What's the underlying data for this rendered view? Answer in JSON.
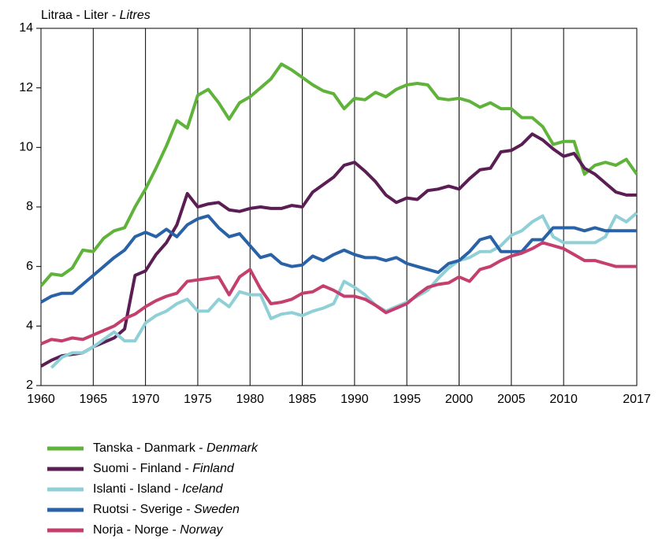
{
  "chart_data": {
    "type": "line",
    "title": "Litraa - Liter - Litres",
    "x": [
      1960,
      1961,
      1962,
      1963,
      1964,
      1965,
      1966,
      1967,
      1968,
      1969,
      1970,
      1971,
      1972,
      1973,
      1974,
      1975,
      1976,
      1977,
      1978,
      1979,
      1980,
      1981,
      1982,
      1983,
      1984,
      1985,
      1986,
      1987,
      1988,
      1989,
      1990,
      1991,
      1992,
      1993,
      1994,
      1995,
      1996,
      1997,
      1998,
      1999,
      2000,
      2001,
      2002,
      2003,
      2004,
      2005,
      2006,
      2007,
      2008,
      2009,
      2010,
      2011,
      2012,
      2013,
      2014,
      2015,
      2016,
      2017
    ],
    "xlim": [
      1960,
      2017
    ],
    "xticks": [
      1960,
      1965,
      1970,
      1975,
      1980,
      1985,
      1990,
      1995,
      2000,
      2005,
      2010,
      2017
    ],
    "ylim": [
      2,
      14
    ],
    "yticks": [
      2,
      4,
      6,
      8,
      10,
      12,
      14
    ],
    "grid": "x",
    "series": [
      {
        "name": "Tanska - Danmark - Denmark",
        "color": "#5fb33a",
        "values": [
          5.35,
          5.75,
          5.7,
          5.95,
          6.55,
          6.5,
          6.95,
          7.2,
          7.3,
          8.0,
          8.6,
          9.3,
          10.05,
          10.9,
          10.65,
          11.75,
          11.95,
          11.5,
          10.95,
          11.5,
          11.7,
          12.0,
          12.3,
          12.8,
          12.6,
          12.35,
          12.1,
          11.9,
          11.8,
          11.3,
          11.65,
          11.6,
          11.85,
          11.7,
          11.95,
          12.1,
          12.15,
          12.1,
          11.65,
          11.6,
          11.65,
          11.55,
          11.35,
          11.5,
          11.3,
          11.3,
          11.0,
          11.0,
          10.7,
          10.1,
          10.2,
          10.2,
          9.1,
          9.4,
          9.5,
          9.4,
          9.6,
          9.1
        ]
      },
      {
        "name": "Suomi - Finland - Finland",
        "color": "#5a1e54",
        "values": [
          2.65,
          2.85,
          3.0,
          3.05,
          3.1,
          3.3,
          3.45,
          3.6,
          3.9,
          5.7,
          5.85,
          6.4,
          6.8,
          7.4,
          8.45,
          8.0,
          8.1,
          8.15,
          7.9,
          7.85,
          7.95,
          8.0,
          7.95,
          7.95,
          8.05,
          8.0,
          8.5,
          8.75,
          9.0,
          9.4,
          9.5,
          9.2,
          8.85,
          8.4,
          8.15,
          8.3,
          8.25,
          8.55,
          8.6,
          8.7,
          8.6,
          8.95,
          9.25,
          9.3,
          9.85,
          9.9,
          10.1,
          10.45,
          10.25,
          9.95,
          9.7,
          9.8,
          9.3,
          9.1,
          8.8,
          8.5,
          8.4,
          8.4
        ]
      },
      {
        "name": "Islanti - Island - Iceland",
        "color": "#8fd0d6",
        "values": [
          null,
          2.6,
          2.95,
          3.1,
          3.1,
          3.3,
          3.55,
          3.8,
          3.5,
          3.5,
          4.1,
          4.35,
          4.5,
          4.75,
          4.9,
          4.5,
          4.5,
          4.9,
          4.65,
          5.15,
          5.05,
          5.05,
          4.25,
          4.4,
          4.45,
          4.35,
          4.5,
          4.6,
          4.75,
          5.5,
          5.3,
          5.05,
          4.7,
          4.5,
          4.65,
          4.8,
          5.0,
          5.2,
          5.6,
          5.95,
          6.2,
          6.3,
          6.5,
          6.5,
          6.7,
          7.05,
          7.2,
          7.5,
          7.7,
          7.0,
          6.8,
          6.8,
          6.8,
          6.8,
          7.0,
          7.7,
          7.5,
          7.8
        ]
      },
      {
        "name": "Ruotsi - Sverige - Sweden",
        "color": "#2a62a8",
        "values": [
          4.8,
          5.0,
          5.1,
          5.1,
          5.4,
          5.7,
          6.0,
          6.3,
          6.55,
          7.0,
          7.15,
          7.0,
          7.25,
          7.0,
          7.4,
          7.6,
          7.7,
          7.3,
          7.0,
          7.1,
          6.7,
          6.3,
          6.4,
          6.1,
          6.0,
          6.05,
          6.35,
          6.2,
          6.4,
          6.55,
          6.4,
          6.3,
          6.3,
          6.2,
          6.3,
          6.1,
          6.0,
          5.9,
          5.8,
          6.1,
          6.2,
          6.5,
          6.9,
          7.0,
          6.5,
          6.5,
          6.5,
          6.9,
          6.9,
          7.3,
          7.3,
          7.3,
          7.2,
          7.3,
          7.2,
          7.2,
          7.2,
          7.2
        ]
      },
      {
        "name": "Norja - Norge - Norway",
        "color": "#c43f6e",
        "values": [
          3.4,
          3.55,
          3.5,
          3.6,
          3.55,
          3.7,
          3.85,
          4.0,
          4.25,
          4.4,
          4.65,
          4.85,
          5.0,
          5.1,
          5.5,
          5.55,
          5.6,
          5.65,
          5.05,
          5.65,
          5.9,
          5.25,
          4.75,
          4.8,
          4.9,
          5.1,
          5.15,
          5.35,
          5.2,
          5.0,
          5.0,
          4.9,
          4.7,
          4.45,
          4.6,
          4.75,
          5.05,
          5.3,
          5.4,
          5.45,
          5.65,
          5.5,
          5.9,
          6.0,
          6.2,
          6.35,
          6.45,
          6.6,
          6.8,
          6.7,
          6.6,
          6.4,
          6.2,
          6.2,
          6.1,
          6.0,
          6.0,
          6.0
        ]
      }
    ]
  }
}
